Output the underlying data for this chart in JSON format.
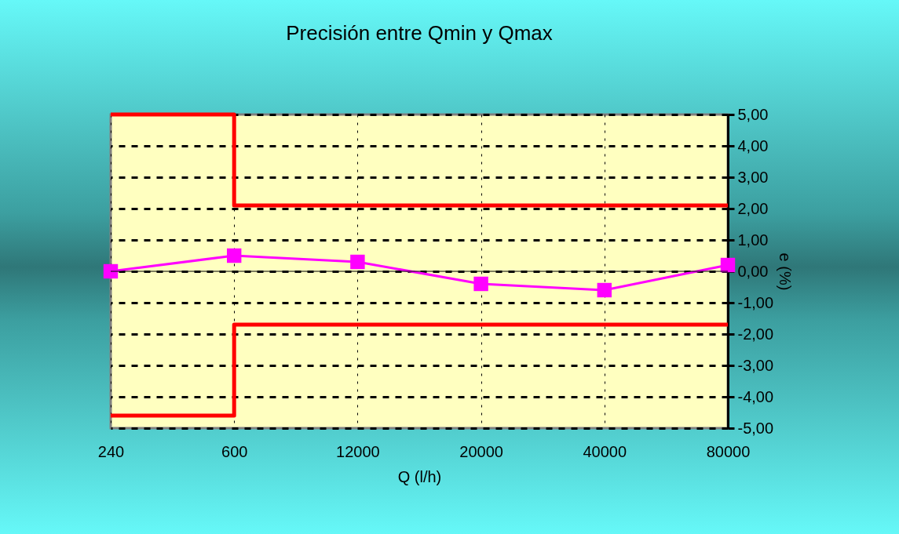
{
  "chart_data": {
    "type": "line",
    "title": "Precisión entre Qmin y Qmax",
    "xlabel": "Q  (l/h)",
    "ylabel": "e (%)",
    "categories": [
      "240",
      "600",
      "12000",
      "20000",
      "40000",
      "80000"
    ],
    "series": [
      {
        "type": "step",
        "color": "#ff0000",
        "marker": "none",
        "values": [
          5,
          2.1,
          2.1,
          2.1,
          2.1,
          2.1
        ]
      },
      {
        "type": "step",
        "color": "#ff0000",
        "marker": "none",
        "values": [
          -4.6,
          -1.7,
          -1.7,
          -1.7,
          -1.7,
          -1.7
        ]
      },
      {
        "type": "line",
        "color": "#ff00ff",
        "marker": "square",
        "values": [
          0,
          0.5,
          0.3,
          -0.4,
          -0.6,
          0.2
        ]
      }
    ],
    "ylim": [
      -5,
      5
    ],
    "yticks": [
      {
        "value": -5,
        "label": "-5,00"
      },
      {
        "value": -4,
        "label": "-4,00"
      },
      {
        "value": -3,
        "label": "-3,00"
      },
      {
        "value": -2,
        "label": "-2,00"
      },
      {
        "value": -1,
        "label": "-1,00"
      },
      {
        "value": 0,
        "label": "0,00"
      },
      {
        "value": 1,
        "label": "1,00"
      },
      {
        "value": 2,
        "label": "2,00"
      },
      {
        "value": 3,
        "label": "3,00"
      },
      {
        "value": 4,
        "label": "4,00"
      },
      {
        "value": 5,
        "label": "5,00"
      }
    ],
    "grid": true
  }
}
